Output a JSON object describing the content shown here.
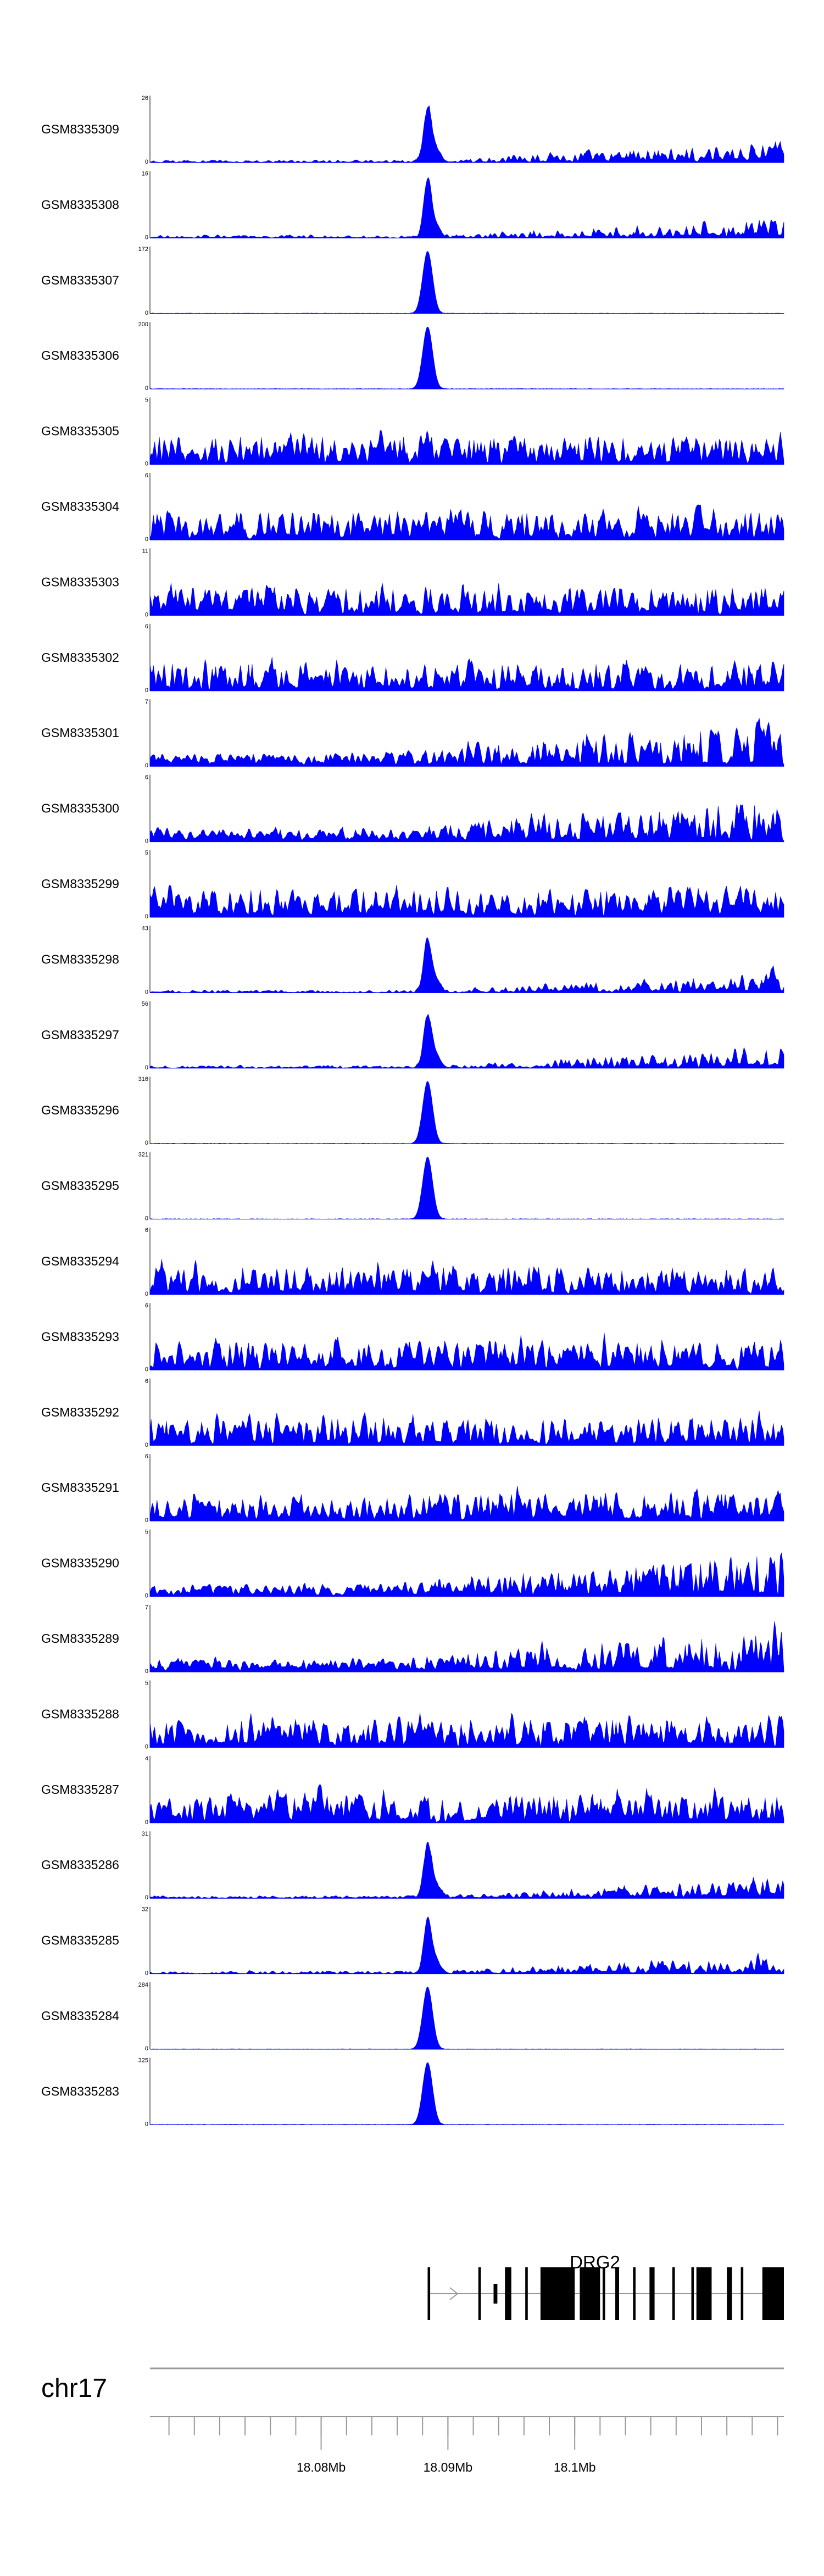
{
  "chart_data": {
    "type": "area",
    "title": "",
    "xlabel": "",
    "ylabel": "",
    "chromosome": "chr17",
    "xlim": [
      18.0665,
      18.1165
    ],
    "x_ticks": [
      18.08,
      18.09,
      18.1
    ],
    "x_tick_labels": [
      "18.08Mb",
      "18.09Mb",
      "18.1Mb"
    ],
    "color": "#0000ff",
    "peak_center": 18.0884,
    "series": [
      {
        "name": "GSM8335309",
        "ymax": 26,
        "profile": "peak-rising"
      },
      {
        "name": "GSM8335308",
        "ymax": 16,
        "profile": "peak-rising"
      },
      {
        "name": "GSM8335307",
        "ymax": 172,
        "profile": "sharp"
      },
      {
        "name": "GSM8335306",
        "ymax": 200,
        "profile": "sharp"
      },
      {
        "name": "GSM8335305",
        "ymax": 5,
        "profile": "noise"
      },
      {
        "name": "GSM8335304",
        "ymax": 6,
        "profile": "noise"
      },
      {
        "name": "GSM8335303",
        "ymax": 11,
        "profile": "noise"
      },
      {
        "name": "GSM8335302",
        "ymax": 6,
        "profile": "noise"
      },
      {
        "name": "GSM8335301",
        "ymax": 7,
        "profile": "noise-rising"
      },
      {
        "name": "GSM8335300",
        "ymax": 6,
        "profile": "noise-rising"
      },
      {
        "name": "GSM8335299",
        "ymax": 5,
        "profile": "noise"
      },
      {
        "name": "GSM8335298",
        "ymax": 43,
        "profile": "peak-rising"
      },
      {
        "name": "GSM8335297",
        "ymax": 56,
        "profile": "peak-rising"
      },
      {
        "name": "GSM8335296",
        "ymax": 316,
        "profile": "sharp"
      },
      {
        "name": "GSM8335295",
        "ymax": 321,
        "profile": "sharp"
      },
      {
        "name": "GSM8335294",
        "ymax": 6,
        "profile": "noise"
      },
      {
        "name": "GSM8335293",
        "ymax": 6,
        "profile": "noise"
      },
      {
        "name": "GSM8335292",
        "ymax": 6,
        "profile": "noise"
      },
      {
        "name": "GSM8335291",
        "ymax": 6,
        "profile": "noise"
      },
      {
        "name": "GSM8335290",
        "ymax": 5,
        "profile": "noise-rising"
      },
      {
        "name": "GSM8335289",
        "ymax": 7,
        "profile": "noise-rising"
      },
      {
        "name": "GSM8335288",
        "ymax": 5,
        "profile": "noise"
      },
      {
        "name": "GSM8335287",
        "ymax": 4,
        "profile": "noise"
      },
      {
        "name": "GSM8335286",
        "ymax": 31,
        "profile": "peak-rising"
      },
      {
        "name": "GSM8335285",
        "ymax": 32,
        "profile": "peak-rising"
      },
      {
        "name": "GSM8335284",
        "ymax": 284,
        "profile": "sharp"
      },
      {
        "name": "GSM8335283",
        "ymax": 325,
        "profile": "sharp"
      }
    ],
    "gene": {
      "name": "DRG2",
      "start": 18.0884,
      "end": 18.1165,
      "strand": "+",
      "exons": [
        [
          18.0884,
          18.0886,
          "coding"
        ],
        [
          18.0924,
          18.0926,
          "coding"
        ],
        [
          18.0936,
          18.0939,
          "utr"
        ],
        [
          18.0945,
          18.095,
          "coding"
        ],
        [
          18.0961,
          18.0963,
          "coding"
        ],
        [
          18.0973,
          18.1,
          "coding"
        ],
        [
          18.1004,
          18.1006,
          "coding"
        ],
        [
          18.1006,
          18.102,
          "coding"
        ],
        [
          18.1022,
          18.1024,
          "coding"
        ],
        [
          18.1032,
          18.1035,
          "coding"
        ],
        [
          18.1046,
          18.1048,
          "coding"
        ],
        [
          18.1059,
          18.1063,
          "coding"
        ],
        [
          18.1077,
          18.1079,
          "coding"
        ],
        [
          18.1092,
          18.1094,
          "coding"
        ],
        [
          18.1096,
          18.1108,
          "coding"
        ],
        [
          18.112,
          18.1124,
          "coding"
        ],
        [
          18.1131,
          18.1133,
          "coding"
        ],
        [
          18.1148,
          18.1165,
          "coding"
        ]
      ]
    }
  }
}
